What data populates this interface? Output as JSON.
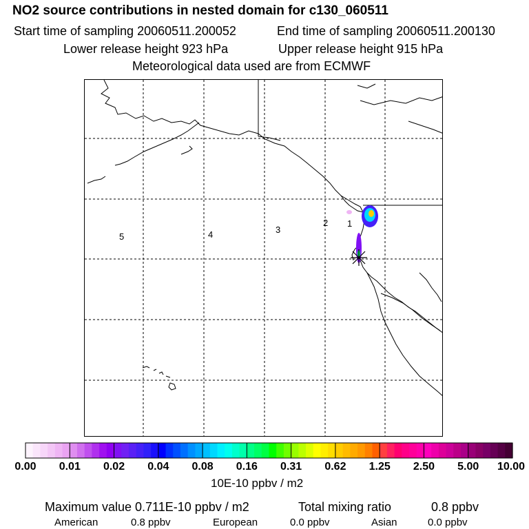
{
  "header": {
    "title": "NO2 source contributions in nested domain for c130_060511",
    "start_time": "Start time of sampling 20060511.200052",
    "end_time": "End time of sampling 20060511.200130",
    "lower_height": "Lower release height  923 hPa",
    "upper_height": "Upper release height  915 hPa",
    "met_data": "Meteorological data used are from ECMWF"
  },
  "chart_data": {
    "type": "heatmap",
    "title": "NO2 source contributions in nested domain for c130_060511",
    "region_labels": [
      "5",
      "4",
      "3",
      "2",
      "1"
    ],
    "receptor_marker": "release-point",
    "plume_cells": [
      {
        "cell": "north-coast",
        "value": 0.711,
        "band": "0.62-1.25"
      },
      {
        "cell": "north-coast-edge",
        "value": 0.1,
        "band": "0.08-0.16"
      },
      {
        "cell": "north-coast-fringe",
        "value": 0.03,
        "band": "0.02-0.04"
      },
      {
        "cell": "south-coast",
        "value": 0.2,
        "band": "0.16-0.31"
      },
      {
        "cell": "south-coast-fringe",
        "value": 0.02,
        "band": "0.02-0.04"
      },
      {
        "cell": "offshore-patch",
        "value": 0.008,
        "band": "0.00-0.01"
      }
    ],
    "colorbar": {
      "tick_labels": [
        "0.00",
        "0.01",
        "0.02",
        "0.04",
        "0.08",
        "0.16",
        "0.31",
        "0.62",
        "1.25",
        "2.50",
        "5.00",
        "10.00"
      ],
      "units": "10E-10 ppbv / m2",
      "colors": [
        "#fdf3fd",
        "#fae5fb",
        "#f7d6f9",
        "#f3c6f6",
        "#efb5f4",
        "#eaa3f2",
        "#df8ef0",
        "#d070ee",
        "#c050ee",
        "#b030ee",
        "#a010f0",
        "#9000f2",
        "#8010f4",
        "#7020f4",
        "#5a20f6",
        "#4520f8",
        "#3020fa",
        "#1a10fc",
        "#0000ff",
        "#0030ff",
        "#0050ff",
        "#0070ff",
        "#0090ff",
        "#00a8ff",
        "#00c0ff",
        "#00d8ff",
        "#00f0ff",
        "#00ffee",
        "#00ffcc",
        "#00ffaa",
        "#00ff88",
        "#00ff66",
        "#00ff44",
        "#00ff00",
        "#40ff00",
        "#70ff00",
        "#99ff00",
        "#bbff00",
        "#ddff00",
        "#ffff00",
        "#ffee00",
        "#ffdd00",
        "#ffcc00",
        "#ffbb00",
        "#ffaa00",
        "#ff9900",
        "#ff8000",
        "#ff6000",
        "#ff4040",
        "#ff2060",
        "#ff0070",
        "#ff0088",
        "#ff0099",
        "#ff00aa",
        "#ff00bb",
        "#ee00aa",
        "#dd0099",
        "#cc0099",
        "#bb0088",
        "#aa0088",
        "#990077",
        "#880066",
        "#770066",
        "#660055",
        "#550044",
        "#440033"
      ]
    }
  },
  "summary": {
    "max_value": "Maximum value  0.711E-10 ppbv / m2",
    "total_mixing_label": "Total mixing ratio",
    "total_mixing_value": "0.8 ppbv",
    "american_label": "American",
    "american_value": "0.8 ppbv",
    "european_label": "European",
    "european_value": "0.0 ppbv",
    "asian_label": "Asian",
    "asian_value": "0.0 ppbv"
  }
}
